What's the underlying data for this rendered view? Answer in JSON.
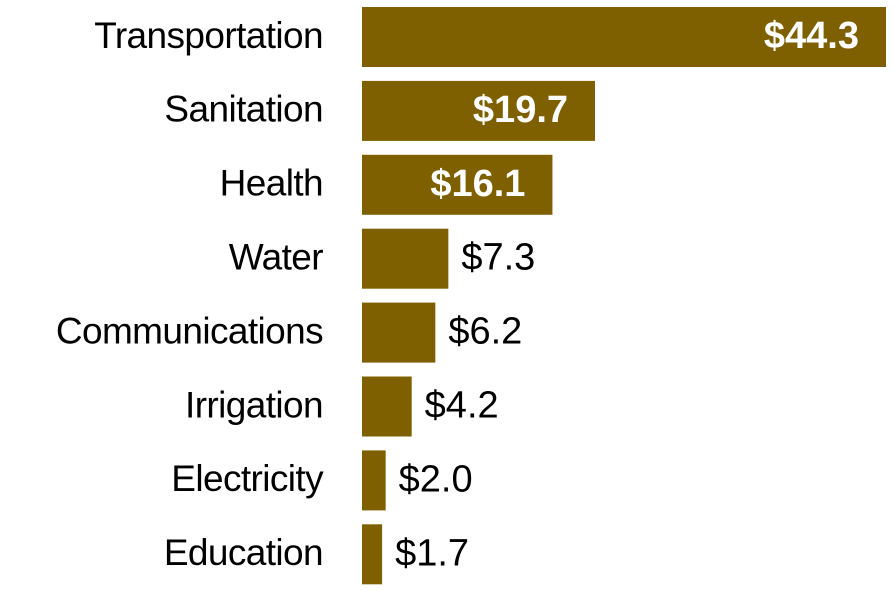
{
  "chart_data": {
    "type": "bar",
    "orientation": "horizontal",
    "categories": [
      "Transportation",
      "Sanitation",
      "Health",
      "Water",
      "Communications",
      "Irrigation",
      "Electricity",
      "Education"
    ],
    "values": [
      44.3,
      19.7,
      16.1,
      7.3,
      6.2,
      4.2,
      2.0,
      1.7
    ],
    "value_labels": [
      "$44.3",
      "$19.7",
      "$16.1",
      "$7.3",
      "$6.2",
      "$4.2",
      "$2.0",
      "$1.7"
    ],
    "color": "#7f6000"
  }
}
